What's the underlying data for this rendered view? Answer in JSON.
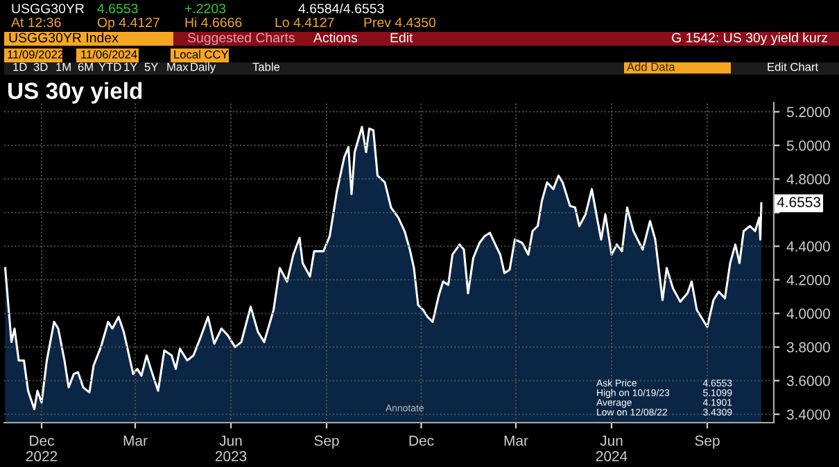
{
  "chart_data": {
    "type": "area",
    "title": "US 30y yield",
    "x": [
      "2022-11-10",
      "2022-11-13",
      "2022-11-16",
      "2022-11-19",
      "2022-11-23",
      "2022-11-28",
      "2022-12-02",
      "2022-12-08",
      "2022-12-11",
      "2022-12-15",
      "2022-12-20",
      "2022-12-27",
      "2022-12-31",
      "2023-01-06",
      "2023-01-10",
      "2023-01-15",
      "2023-01-19",
      "2023-01-24",
      "2023-01-30",
      "2023-02-03",
      "2023-02-10",
      "2023-02-17",
      "2023-02-21",
      "2023-02-27",
      "2023-03-04",
      "2023-03-08",
      "2023-03-13",
      "2023-03-17",
      "2023-03-21",
      "2023-03-26",
      "2023-03-30",
      "2023-04-06",
      "2023-04-12",
      "2023-04-19",
      "2023-04-23",
      "2023-04-27",
      "2023-05-04",
      "2023-05-10",
      "2023-05-17",
      "2023-05-24",
      "2023-05-30",
      "2023-06-06",
      "2023-06-12",
      "2023-06-19",
      "2023-06-25",
      "2023-07-04",
      "2023-07-11",
      "2023-07-17",
      "2023-07-26",
      "2023-08-01",
      "2023-08-08",
      "2023-08-14",
      "2023-08-20",
      "2023-08-23",
      "2023-08-30",
      "2023-09-03",
      "2023-09-12",
      "2023-09-18",
      "2023-09-25",
      "2023-10-02",
      "2023-10-06",
      "2023-10-09",
      "2023-10-12",
      "2023-10-19",
      "2023-10-23",
      "2023-10-26",
      "2023-10-30",
      "2023-11-03",
      "2023-11-10",
      "2023-11-16",
      "2023-11-23",
      "2023-11-29",
      "2023-12-04",
      "2023-12-08",
      "2023-12-12",
      "2023-12-17",
      "2023-12-21",
      "2023-12-26",
      "2024-01-01",
      "2024-01-05",
      "2024-01-10",
      "2024-01-14",
      "2024-01-21",
      "2024-01-25",
      "2024-01-29",
      "2024-02-03",
      "2024-02-09",
      "2024-02-14",
      "2024-02-19",
      "2024-02-25",
      "2024-02-29",
      "2024-03-04",
      "2024-03-09",
      "2024-03-14",
      "2024-03-21",
      "2024-03-27",
      "2024-03-31",
      "2024-04-05",
      "2024-04-09",
      "2024-04-14",
      "2024-04-20",
      "2024-04-25",
      "2024-04-29",
      "2024-05-06",
      "2024-05-11",
      "2024-05-15",
      "2024-05-21",
      "2024-05-27",
      "2024-06-01",
      "2024-06-05",
      "2024-06-09",
      "2024-06-15",
      "2024-06-20",
      "2024-06-25",
      "2024-06-30",
      "2024-07-06",
      "2024-07-10",
      "2024-07-15",
      "2024-07-22",
      "2024-07-27",
      "2024-08-03",
      "2024-08-07",
      "2024-08-13",
      "2024-08-20",
      "2024-08-27",
      "2024-08-31",
      "2024-09-05",
      "2024-09-11",
      "2024-09-15",
      "2024-09-21",
      "2024-09-26",
      "2024-10-02",
      "2024-10-07",
      "2024-10-12",
      "2024-10-16",
      "2024-10-20",
      "2024-10-26",
      "2024-10-31",
      "2024-11-04",
      "2024-11-05",
      "2024-11-06"
    ],
    "series": [
      {
        "color": "#ffffff",
        "values": [
          4.27,
          4.05,
          3.83,
          3.91,
          3.72,
          3.72,
          3.54,
          3.43,
          3.54,
          3.47,
          3.72,
          3.95,
          3.91,
          3.72,
          3.56,
          3.64,
          3.65,
          3.56,
          3.53,
          3.69,
          3.8,
          3.95,
          3.91,
          3.98,
          3.89,
          3.78,
          3.64,
          3.67,
          3.63,
          3.75,
          3.67,
          3.54,
          3.78,
          3.75,
          3.67,
          3.79,
          3.72,
          3.75,
          3.86,
          3.98,
          3.82,
          3.91,
          3.87,
          3.8,
          3.83,
          4.04,
          3.89,
          3.83,
          4.02,
          4.27,
          4.19,
          4.35,
          4.45,
          4.3,
          4.22,
          4.37,
          4.37,
          4.46,
          4.73,
          4.93,
          4.99,
          4.71,
          4.96,
          5.11,
          4.96,
          5.1,
          5.09,
          4.82,
          4.78,
          4.63,
          4.57,
          4.49,
          4.38,
          4.27,
          4.05,
          4.02,
          3.98,
          3.95,
          4.11,
          4.19,
          4.17,
          4.35,
          4.41,
          4.38,
          4.12,
          4.33,
          4.42,
          4.46,
          4.48,
          4.4,
          4.35,
          4.24,
          4.26,
          4.44,
          4.42,
          4.35,
          4.49,
          4.52,
          4.67,
          4.78,
          4.74,
          4.82,
          4.78,
          4.64,
          4.63,
          4.52,
          4.59,
          4.74,
          4.57,
          4.44,
          4.59,
          4.35,
          4.41,
          4.37,
          4.63,
          4.49,
          4.44,
          4.38,
          4.55,
          4.44,
          4.08,
          4.27,
          4.15,
          4.07,
          4.12,
          4.19,
          4.02,
          3.96,
          3.92,
          4.08,
          4.13,
          4.09,
          4.3,
          4.41,
          4.3,
          4.49,
          4.52,
          4.49,
          4.57,
          4.44,
          4.6553
        ]
      }
    ],
    "xlim": [
      "2022-11-09",
      "2024-11-18"
    ],
    "xticks": [
      {
        "value": "2022-12-15",
        "label": "Dec\n2022"
      },
      {
        "value": "2023-03-15",
        "label": "Mar"
      },
      {
        "value": "2023-06-15",
        "label": "Jun\n2023"
      },
      {
        "value": "2023-09-15",
        "label": "Sep"
      },
      {
        "value": "2023-12-15",
        "label": "Dec"
      },
      {
        "value": "2024-03-15",
        "label": "Mar"
      },
      {
        "value": "2024-06-15",
        "label": "Jun\n2024"
      },
      {
        "value": "2024-09-15",
        "label": "Sep"
      }
    ],
    "ylim": [
      3.35,
      5.255
    ],
    "yticks": [
      {
        "value": 3.4,
        "label": "3.4000"
      },
      {
        "value": 3.6,
        "label": "3.6000"
      },
      {
        "value": 3.8,
        "label": "3.8000"
      },
      {
        "value": 4.0,
        "label": "4.0000"
      },
      {
        "value": 4.2,
        "label": "4.2000"
      },
      {
        "value": 4.4,
        "label": "4.4000"
      },
      {
        "value": 4.6,
        "label": null
      },
      {
        "value": 4.8,
        "label": "4.8000"
      },
      {
        "value": 5.0,
        "label": "5.0000"
      },
      {
        "value": 5.2,
        "label": "5.2000"
      }
    ],
    "grid": true,
    "annotations": [
      "USGG30YR",
      "4.6553",
      "+.2203",
      "4.6584/4.6553",
      "At 12:36",
      "Op 4.4127",
      "Hi 4.6666",
      "Lo 4.4127",
      "Prev 4.4350",
      "USGG30YR Index",
      "Suggested Charts",
      "Actions",
      "Edit",
      "G 1542: US 30y yield kurz",
      "11/09/2022",
      "11/06/2024",
      "Local CCY",
      "1D",
      "3D",
      "1M",
      "6M",
      "YTD",
      "1Y",
      "5Y",
      "Max",
      "Daily",
      "Table",
      "Add Data",
      "Edit Chart",
      "Annotate",
      "Ask Price",
      "4.6553",
      "High on 10/19/23",
      "5.1099",
      "Average",
      "4.1901",
      "Low on 12/08/22",
      "3.4309",
      {
        "text": "4.6553",
        "x": "2024-11-06",
        "y": 4.6553
      }
    ]
  }
}
